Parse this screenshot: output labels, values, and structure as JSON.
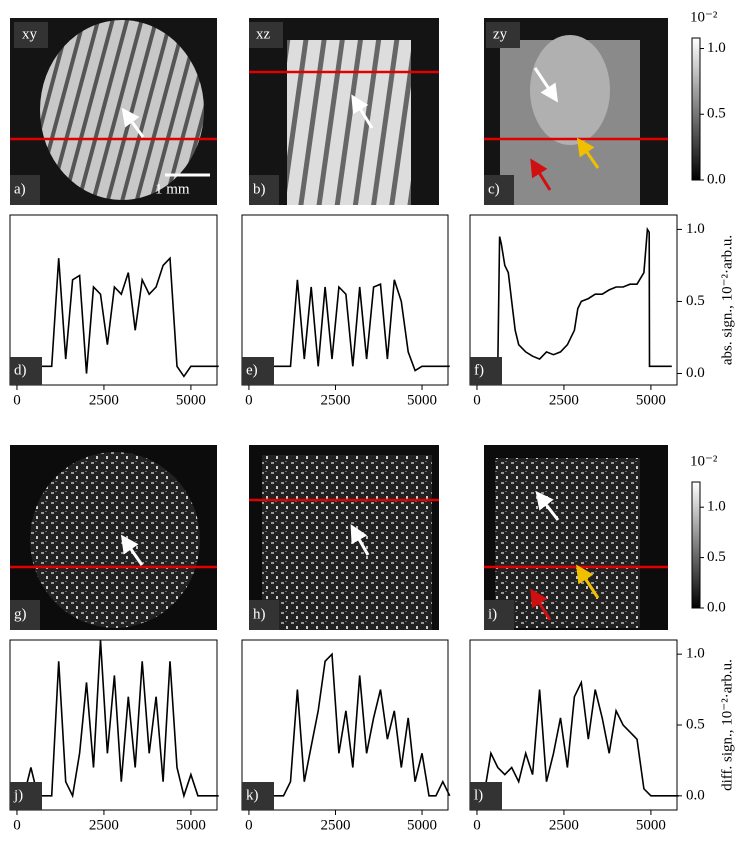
{
  "chart_data": [
    {
      "type": "image",
      "title": "xy",
      "panel_label": "a)",
      "annotation": "1 mm"
    },
    {
      "type": "image",
      "title": "xz",
      "panel_label": "b)"
    },
    {
      "type": "image",
      "title": "zy",
      "panel_label": "c)"
    },
    {
      "type": "colorbar",
      "label": "10⁻²",
      "ylim": [
        0,
        1.08
      ],
      "yticks": [
        {
          "value": 0,
          "label": "0.0"
        },
        {
          "value": 0.5,
          "label": "0.5"
        },
        {
          "value": 1.0,
          "label": "1.0"
        }
      ]
    },
    {
      "type": "line",
      "panel_label": "d)",
      "color": "#000000",
      "xlim": [
        -200,
        5750
      ],
      "ylim": [
        -0.08,
        1.1
      ],
      "xticks": [
        0,
        2500,
        5000
      ],
      "x": [
        0,
        200,
        400,
        600,
        800,
        1000,
        1200,
        1400,
        1600,
        1800,
        2000,
        2200,
        2400,
        2600,
        2800,
        3000,
        3200,
        3400,
        3600,
        3800,
        4000,
        4200,
        4400,
        4600,
        4800,
        5000,
        5200,
        5400,
        5600,
        5800
      ],
      "values": [
        0.05,
        0.05,
        0.05,
        0.05,
        0.05,
        0.05,
        0.8,
        0.1,
        0.65,
        0.68,
        0.0,
        0.6,
        0.55,
        0.2,
        0.6,
        0.55,
        0.7,
        0.3,
        0.65,
        0.55,
        0.6,
        0.75,
        0.8,
        0.05,
        -0.02,
        0.05,
        0.05,
        0.05,
        0.05,
        0.05
      ]
    },
    {
      "type": "line",
      "panel_label": "e)",
      "color": "#000000",
      "xlim": [
        -200,
        5750
      ],
      "ylim": [
        -0.08,
        1.1
      ],
      "xticks": [
        0,
        2500,
        5000
      ],
      "x": [
        0,
        200,
        400,
        600,
        800,
        1000,
        1200,
        1400,
        1600,
        1800,
        2000,
        2200,
        2400,
        2600,
        2800,
        3000,
        3200,
        3400,
        3600,
        3800,
        4000,
        4200,
        4400,
        4600,
        4800,
        5000,
        5200,
        5400,
        5600,
        5800
      ],
      "values": [
        0.05,
        0.05,
        0.05,
        0.05,
        0.05,
        0.05,
        0.05,
        0.65,
        0.1,
        0.6,
        0.05,
        0.6,
        0.1,
        0.6,
        0.55,
        0.05,
        0.6,
        0.1,
        0.6,
        0.62,
        0.1,
        0.65,
        0.5,
        0.15,
        0.02,
        0.05,
        0.05,
        0.05,
        0.05,
        0.05
      ]
    },
    {
      "type": "line",
      "panel_label": "f)",
      "color": "#000000",
      "xlim": [
        -200,
        5750
      ],
      "ylim": [
        -0.08,
        1.1
      ],
      "xticks": [
        0,
        2500,
        5000
      ],
      "yticks": [
        {
          "value": 0,
          "label": "0.0"
        },
        {
          "value": 0.5,
          "label": "0.5"
        },
        {
          "value": 1.0,
          "label": "1.0"
        }
      ],
      "ylabel": "abs. sign., 10⁻²·arb.u.",
      "x": [
        600,
        650,
        700,
        800,
        900,
        1000,
        1100,
        1200,
        1400,
        1600,
        1800,
        2000,
        2200,
        2400,
        2600,
        2800,
        2900,
        3000,
        3200,
        3400,
        3600,
        3800,
        4000,
        4200,
        4400,
        4600,
        4800,
        4900,
        4950,
        4960,
        5000,
        5600
      ],
      "values": [
        0.05,
        0.95,
        0.9,
        0.75,
        0.7,
        0.5,
        0.3,
        0.2,
        0.15,
        0.12,
        0.1,
        0.15,
        0.13,
        0.15,
        0.2,
        0.3,
        0.45,
        0.5,
        0.52,
        0.55,
        0.55,
        0.58,
        0.6,
        0.6,
        0.62,
        0.62,
        0.7,
        1.0,
        0.98,
        0.05,
        0.05,
        0.05
      ]
    },
    {
      "type": "image",
      "panel_label": "g)"
    },
    {
      "type": "image",
      "panel_label": "h)"
    },
    {
      "type": "image",
      "panel_label": "i)"
    },
    {
      "type": "colorbar",
      "label": "10⁻²",
      "ylim": [
        0,
        1.25
      ],
      "yticks": [
        {
          "value": 0,
          "label": "0.0"
        },
        {
          "value": 0.5,
          "label": "0.5"
        },
        {
          "value": 1.0,
          "label": "1.0"
        }
      ]
    },
    {
      "type": "line",
      "panel_label": "j)",
      "color": "#000000",
      "xlim": [
        -200,
        5750
      ],
      "ylim": [
        -0.1,
        1.1
      ],
      "xticks": [
        0,
        2500,
        5000
      ],
      "x": [
        0,
        200,
        400,
        600,
        800,
        1000,
        1200,
        1400,
        1600,
        1800,
        2000,
        2200,
        2400,
        2600,
        2800,
        3000,
        3200,
        3400,
        3600,
        3800,
        4000,
        4200,
        4400,
        4600,
        4800,
        5000,
        5200,
        5400,
        5600,
        5800
      ],
      "values": [
        0,
        0,
        0.2,
        0,
        0,
        0,
        0.95,
        0.1,
        0,
        0.3,
        0.8,
        0.2,
        1.1,
        0.3,
        0.85,
        0.1,
        0.7,
        0.2,
        0.95,
        0.3,
        0.7,
        0.1,
        0.95,
        0.2,
        0,
        0.15,
        0,
        0,
        0,
        0
      ]
    },
    {
      "type": "line",
      "panel_label": "k)",
      "color": "#000000",
      "xlim": [
        -200,
        5750
      ],
      "ylim": [
        -0.1,
        1.1
      ],
      "xticks": [
        0,
        2500,
        5000
      ],
      "x": [
        0,
        200,
        400,
        600,
        800,
        1000,
        1200,
        1400,
        1600,
        1800,
        2000,
        2200,
        2400,
        2600,
        2800,
        3000,
        3200,
        3400,
        3600,
        3800,
        4000,
        4200,
        4400,
        4600,
        4800,
        5000,
        5200,
        5400,
        5600,
        5800
      ],
      "values": [
        0,
        0,
        0,
        0,
        0,
        0,
        0.1,
        0.75,
        0.1,
        0.35,
        0.6,
        0.95,
        1.0,
        0.3,
        0.6,
        0.2,
        0.85,
        0.3,
        0.55,
        0.75,
        0.4,
        0.6,
        0.2,
        0.55,
        0.1,
        0.3,
        0,
        0,
        0.1,
        0
      ]
    },
    {
      "type": "line",
      "panel_label": "l)",
      "color": "#000000",
      "xlim": [
        -200,
        5750
      ],
      "ylim": [
        -0.1,
        1.1
      ],
      "xticks": [
        0,
        2500,
        5000
      ],
      "yticks": [
        {
          "value": 0,
          "label": "0.0"
        },
        {
          "value": 0.5,
          "label": "0.5"
        },
        {
          "value": 1.0,
          "label": "1.0"
        }
      ],
      "ylabel": "diff. sign., 10⁻²·arb.u.",
      "x": [
        0,
        200,
        400,
        600,
        800,
        1000,
        1200,
        1400,
        1600,
        1800,
        2000,
        2200,
        2400,
        2600,
        2800,
        3000,
        3200,
        3400,
        3600,
        3800,
        4000,
        4200,
        4400,
        4600,
        4800,
        5000,
        5200,
        5400,
        5600,
        5800
      ],
      "values": [
        0,
        0,
        0.3,
        0.2,
        0.15,
        0.2,
        0.1,
        0.3,
        0.15,
        0.75,
        0.1,
        0.3,
        0.55,
        0.2,
        0.7,
        0.8,
        0.4,
        0.75,
        0.55,
        0.3,
        0.6,
        0.5,
        0.45,
        0.4,
        0.05,
        0,
        0,
        0,
        0,
        0
      ]
    }
  ]
}
